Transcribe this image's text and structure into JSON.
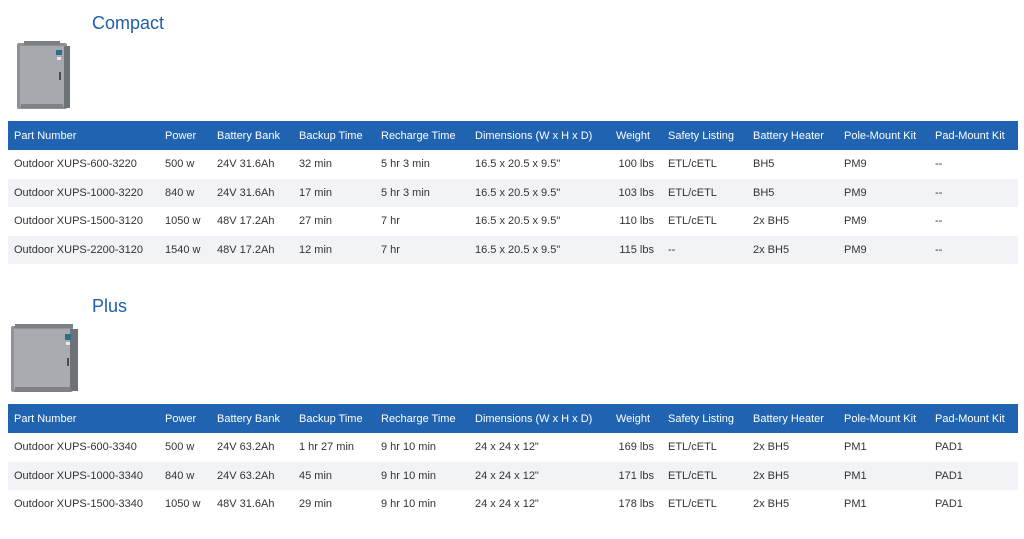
{
  "columns": [
    "Part Number",
    "Power",
    "Battery Bank",
    "Backup Time",
    "Recharge Time",
    "Dimensions (W x H x D)",
    "Weight",
    "Safety Listing",
    "Battery Heater",
    "Pole-Mount Kit",
    "Pad-Mount Kit"
  ],
  "compact": {
    "title": "Compact",
    "image_label": "enclosure-compact",
    "rows": [
      [
        "Outdoor XUPS-600-3220",
        "500 w",
        "24V 31.6Ah",
        "32 min",
        "5 hr 3 min",
        "16.5 x 20.5 x 9.5\"",
        "100 lbs",
        "ETL/cETL",
        "BH5",
        "PM9",
        "--"
      ],
      [
        "Outdoor XUPS-1000-3220",
        "840 w",
        "24V 31.6Ah",
        "17 min",
        "5 hr 3 min",
        "16.5 x 20.5 x 9.5\"",
        "103 lbs",
        "ETL/cETL",
        "BH5",
        "PM9",
        "--"
      ],
      [
        "Outdoor XUPS-1500-3120",
        "1050 w",
        "48V 17.2Ah",
        "27 min",
        "7 hr",
        "16.5 x 20.5 x 9.5\"",
        "110 lbs",
        "ETL/cETL",
        "2x BH5",
        "PM9",
        "--"
      ],
      [
        "Outdoor XUPS-2200-3120",
        "1540 w",
        "48V 17.2Ah",
        "12 min",
        "7 hr",
        "16.5 x 20.5 x 9.5\"",
        "115 lbs",
        "--",
        "2x BH5",
        "PM9",
        "--"
      ]
    ]
  },
  "plus": {
    "title": "Plus",
    "image_label": "enclosure-plus",
    "rows": [
      [
        "Outdoor XUPS-600-3340",
        "500 w",
        "24V 63.2Ah",
        "1 hr 27 min",
        "9 hr 10 min",
        "24 x 24 x 12\"",
        "169 lbs",
        "ETL/cETL",
        "2x BH5",
        "PM1",
        "PAD1"
      ],
      [
        "Outdoor XUPS-1000-3340",
        "840 w",
        "24V 63.2Ah",
        "45 min",
        "9 hr 10 min",
        "24 x 24 x 12\"",
        "171 lbs",
        "ETL/cETL",
        "2x BH5",
        "PM1",
        "PAD1"
      ],
      [
        "Outdoor XUPS-1500-3340",
        "1050 w",
        "48V 31.6Ah",
        "29 min",
        "9 hr 10 min",
        "24 x 24 x 12\"",
        "178 lbs",
        "ETL/cETL",
        "2x BH5",
        "PM1",
        "PAD1"
      ]
    ]
  },
  "colors": {
    "header_bg": "#2063b0",
    "title": "#1f5fa8",
    "stripe": "#f2f3f6"
  }
}
